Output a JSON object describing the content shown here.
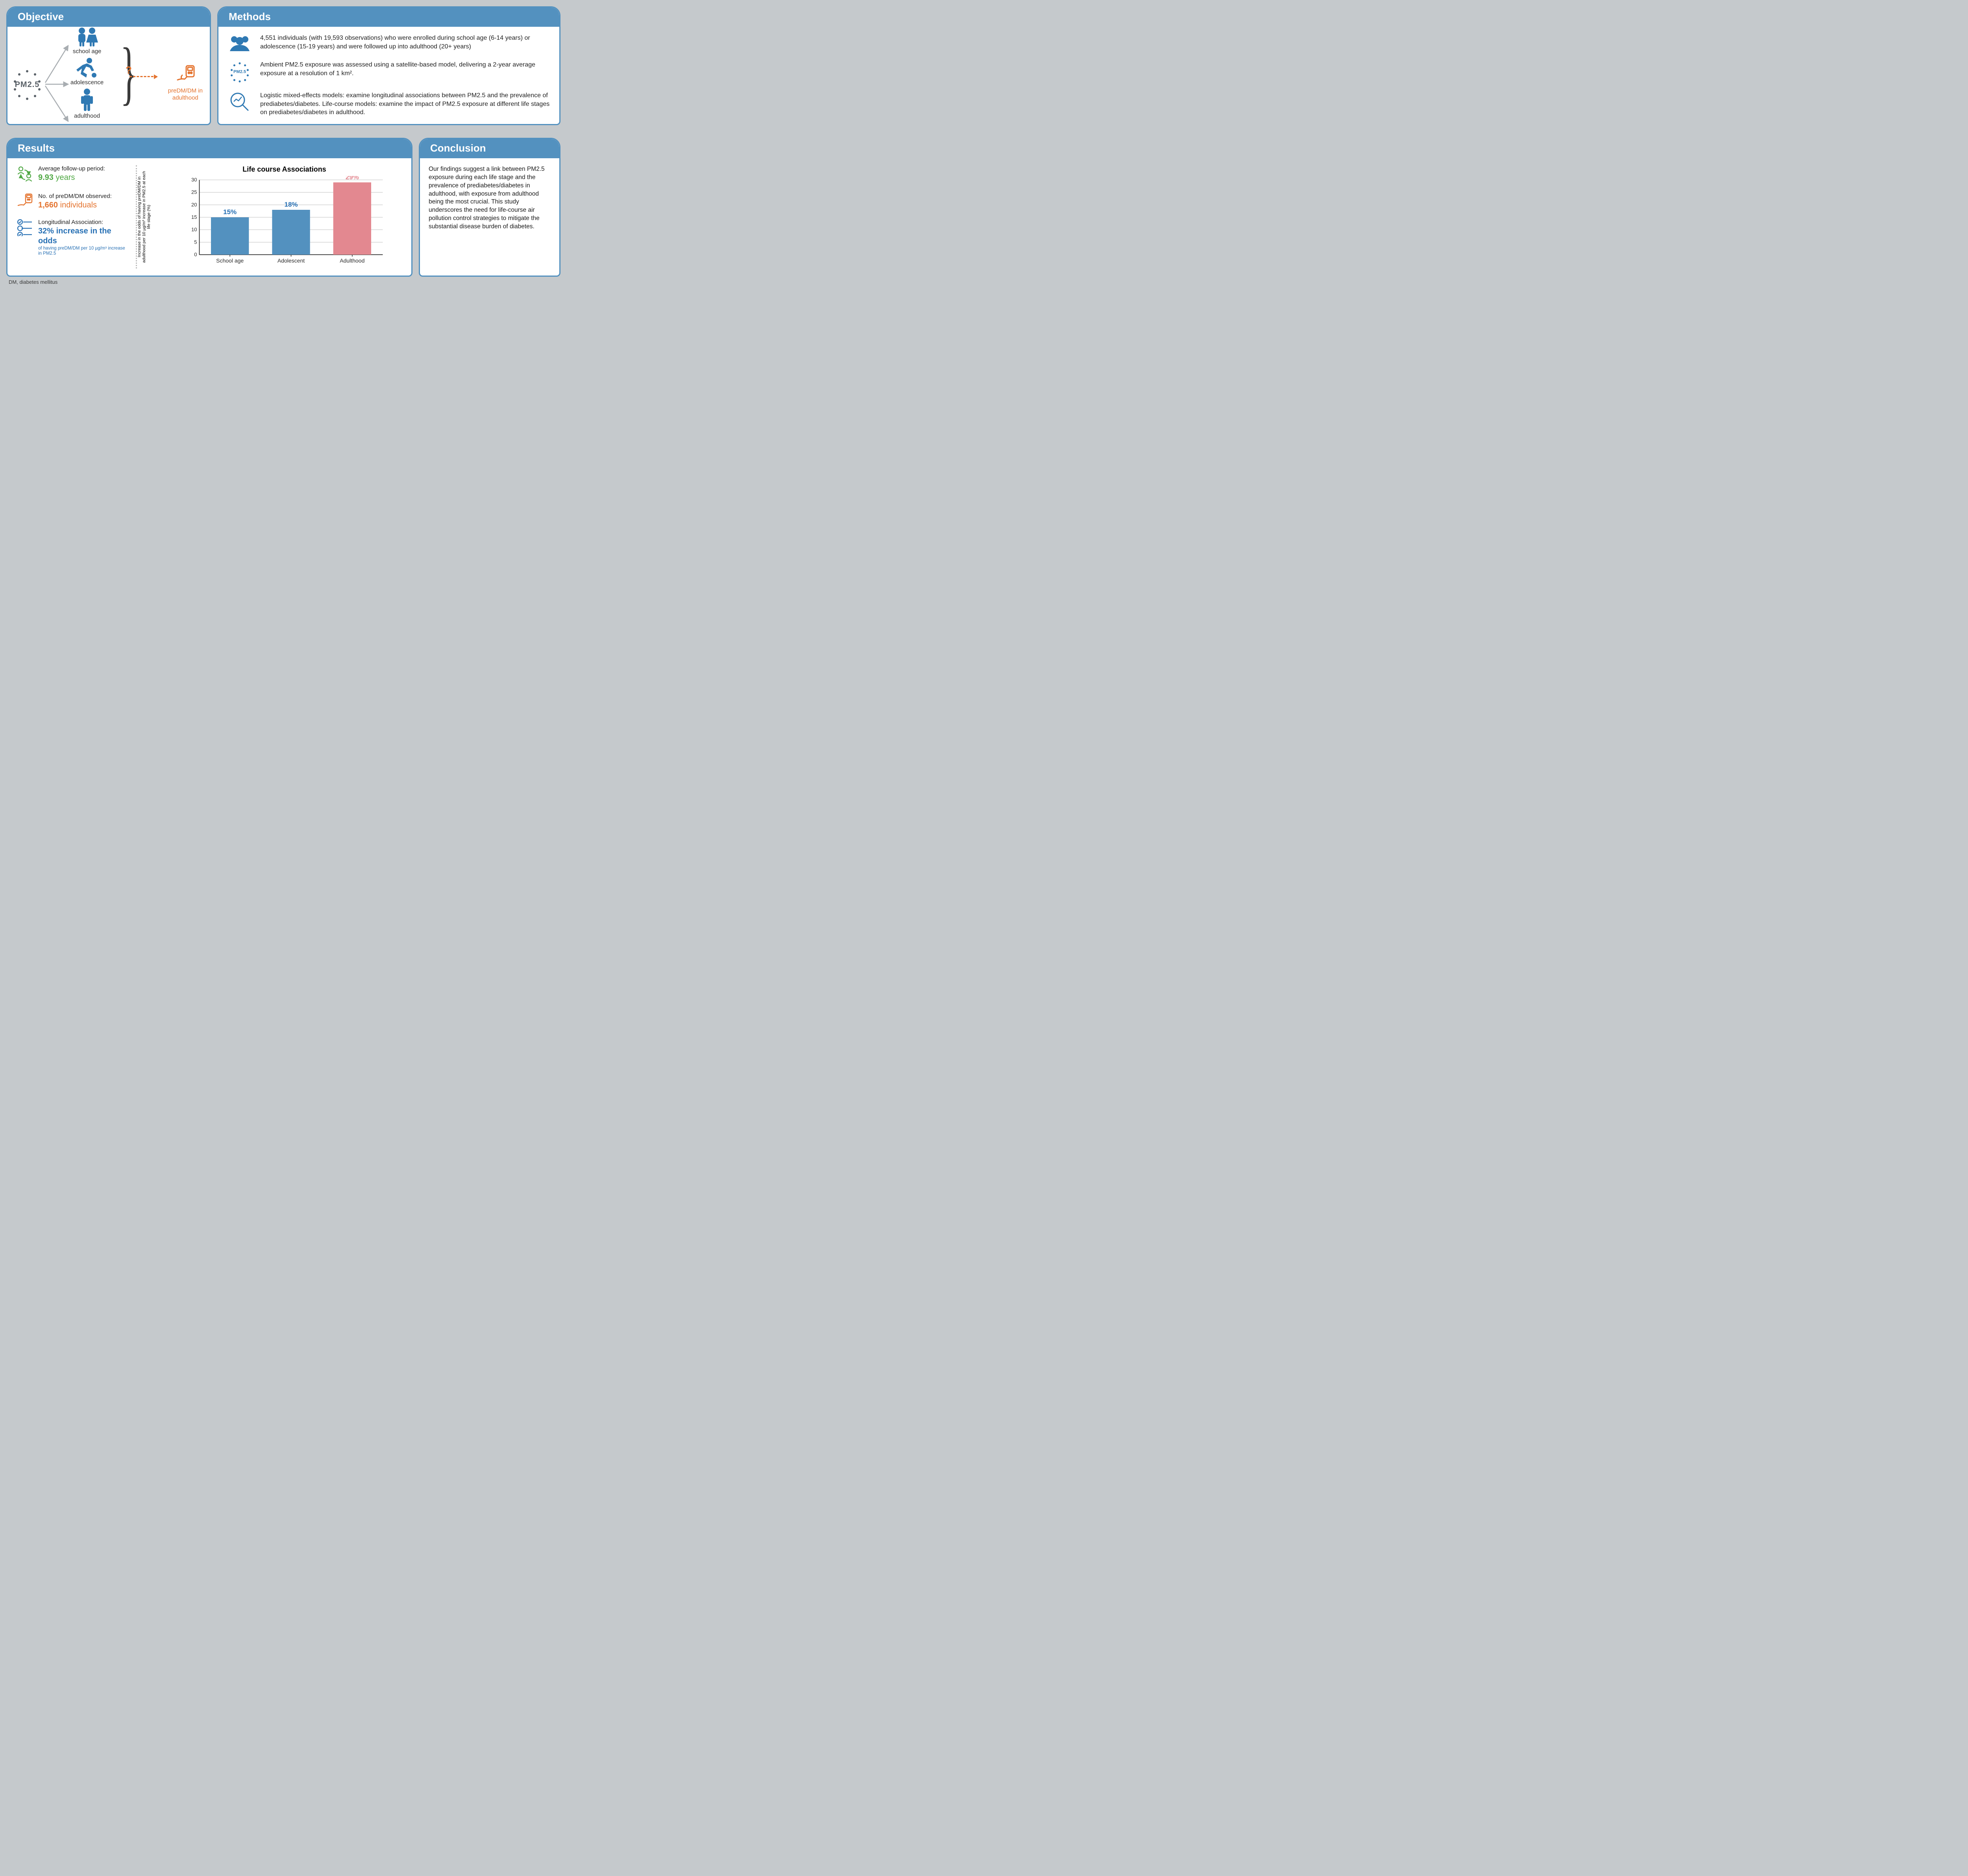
{
  "panels": {
    "objective": {
      "title": "Objective"
    },
    "methods": {
      "title": "Methods"
    },
    "results": {
      "title": "Results"
    },
    "conclusion": {
      "title": "Conclusion"
    }
  },
  "colors": {
    "panel_border": "#5391bf",
    "header_bg": "#5391bf",
    "header_text": "#ffffff",
    "page_bg": "#c5c9cc",
    "body_text": "#222222",
    "accent_orange": "#e4732e",
    "accent_green": "#4fa843",
    "accent_blue": "#2770b4",
    "icon_gray": "#5a6168",
    "bar_blue": "#5391bf",
    "bar_red": "#e38890",
    "grid_line": "#bfbfbf"
  },
  "objective": {
    "pm25_label": "PM2.5",
    "school_label": "school age",
    "adolescence_label": "adolescence",
    "adulthood_label": "adulthood",
    "question_mark": "?",
    "outcome_line1": "preDM/DM in",
    "outcome_line2": "adulthood"
  },
  "methods": {
    "row1": "4,551 individuals (with 19,593 observations) who were enrolled during school age (6-14 years) or adolescence (15-19 years) and were followed up into adulthood (20+ years)",
    "row2_label": "PM2.5",
    "row2": "Ambient PM2.5 exposure was assessed using a satellite-based model, delivering a 2-year average exposure at a resolution of 1 km².",
    "row3": "Logistic mixed-effects models: examine longitudinal associations between PM2.5 and the prevalence of prediabetes/diabetes. Life-course models: examine the impact of PM2.5 exposure at different life stages on prediabetes/diabetes in adulthood."
  },
  "results": {
    "stat1_label": "Average follow-up period:",
    "stat1_value": "9.93",
    "stat1_unit": "years",
    "stat2_label": "No. of preDM/DM observed:",
    "stat2_value": "1,660",
    "stat2_unit": "individuals",
    "stat3_label": "Longitudinal Association:",
    "stat3_value": "32% increase in the odds",
    "stat3_sub": "of having preDM/DM per 10 µg/m³ increase in PM2.5",
    "chart": {
      "type": "bar",
      "title": "Life course Associations",
      "ylabel": "Increase in the odds of having preDM/DM in adulthood per 10 µg/m³ increase in PM2.5 at each life stage (%)",
      "categories": [
        "School age",
        "Adolescent",
        "Adulthood"
      ],
      "values": [
        15,
        18,
        29
      ],
      "value_labels": [
        "15%",
        "18%",
        "29%"
      ],
      "bar_colors": [
        "#5391bf",
        "#5391bf",
        "#e38890"
      ],
      "label_colors": [
        "#2770b4",
        "#2770b4",
        "#e38890"
      ],
      "ylim": [
        0,
        30
      ],
      "ytick_step": 5,
      "yticks": [
        0,
        5,
        10,
        15,
        20,
        25,
        30
      ],
      "bar_width": 0.62,
      "title_fontsize": 18,
      "tick_fontsize": 13,
      "background_color": "#ffffff",
      "grid_color": "#bfbfbf",
      "axis_color": "#2d2d2d"
    }
  },
  "conclusion": {
    "text": "Our findings suggest a link between PM2.5 exposure during each life stage and the prevalence of prediabetes/diabetes in adulthood, with exposure from adulthood being the most crucial. This study underscores the need for life-course air pollution control strategies to mitigate the substantial disease burden of diabetes."
  },
  "footnote": "DM, diabetes mellitus"
}
